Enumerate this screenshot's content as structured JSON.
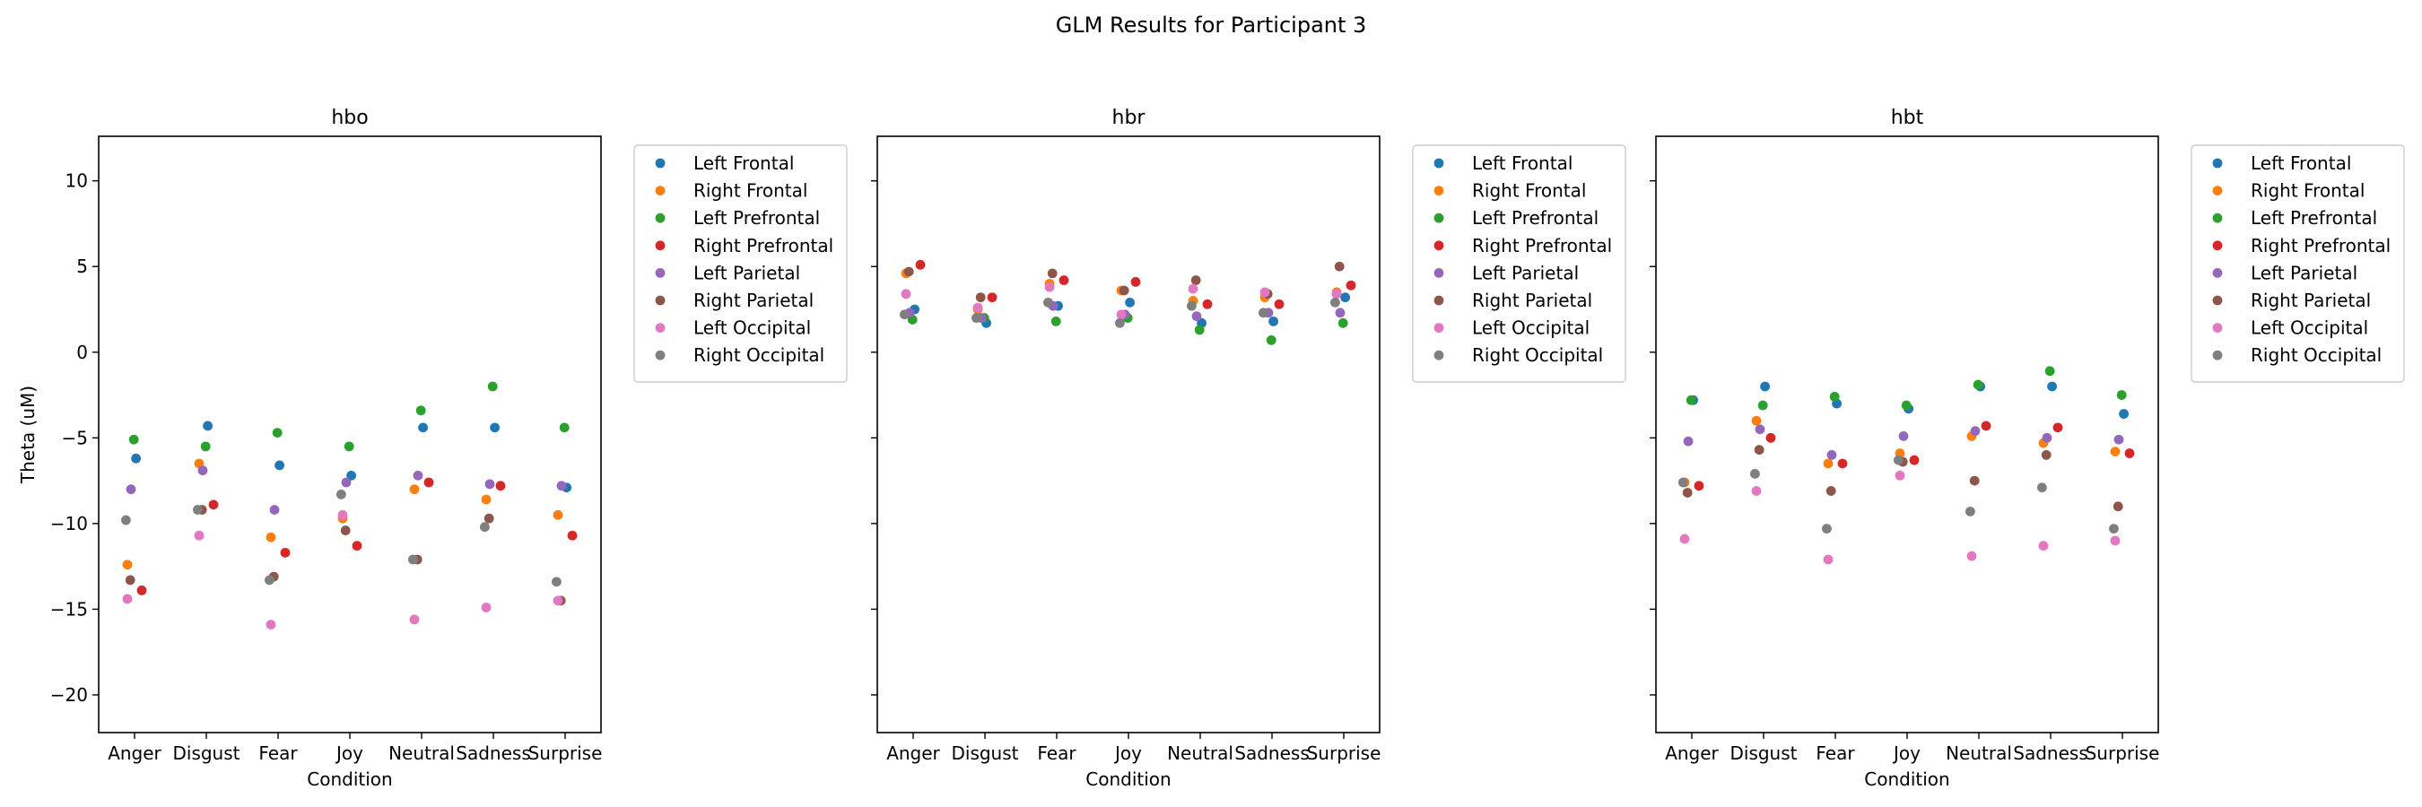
{
  "figure": {
    "suptitle": "GLM Results for Participant 3"
  },
  "legend_entries": [
    {
      "name": "Left Frontal",
      "color": "#1f77b4"
    },
    {
      "name": "Right Frontal",
      "color": "#ff7f0e"
    },
    {
      "name": "Left Prefrontal",
      "color": "#2ca02c"
    },
    {
      "name": "Right Prefrontal",
      "color": "#d62728"
    },
    {
      "name": "Left Parietal",
      "color": "#9467bd"
    },
    {
      "name": "Right Parietal",
      "color": "#8c564b"
    },
    {
      "name": "Left Occipital",
      "color": "#e377c2"
    },
    {
      "name": "Right Occipital",
      "color": "#7f7f7f"
    }
  ],
  "chart_data": [
    {
      "type": "scatter",
      "title": "hbo",
      "xlabel": "Condition",
      "ylabel": "Theta (uM)",
      "categories": [
        "Anger",
        "Disgust",
        "Fear",
        "Joy",
        "Neutral",
        "Sadness",
        "Surprise"
      ],
      "ylim": [
        -22.2,
        12.6
      ],
      "yticks": [
        10,
        5,
        0,
        -5,
        -10,
        -15,
        -20
      ],
      "grid": false,
      "legend_placement": "outside right",
      "series": [
        {
          "name": "Left Frontal",
          "values": [
            -6.2,
            -4.3,
            -6.6,
            -7.2,
            -4.4,
            -4.4,
            -7.9
          ]
        },
        {
          "name": "Right Frontal",
          "values": [
            -12.4,
            -6.5,
            -10.8,
            -9.7,
            -8.0,
            -8.6,
            -9.5
          ]
        },
        {
          "name": "Left Prefrontal",
          "values": [
            -5.1,
            -5.5,
            -4.7,
            -5.5,
            -3.4,
            -2.0,
            -4.4
          ]
        },
        {
          "name": "Right Prefrontal",
          "values": [
            -13.9,
            -8.9,
            -11.7,
            -11.3,
            -7.6,
            -7.8,
            -10.7
          ]
        },
        {
          "name": "Left Parietal",
          "values": [
            -8.0,
            -6.9,
            -9.2,
            -7.6,
            -7.2,
            -7.7,
            -7.8
          ]
        },
        {
          "name": "Right Parietal",
          "values": [
            -13.3,
            -9.2,
            -13.1,
            -10.4,
            -12.1,
            -9.7,
            -14.5
          ]
        },
        {
          "name": "Left Occipital",
          "values": [
            -14.4,
            -10.7,
            -15.9,
            -9.5,
            -15.6,
            -14.9,
            -14.5
          ]
        },
        {
          "name": "Right Occipital",
          "values": [
            -9.8,
            -9.2,
            -13.3,
            -8.3,
            -12.1,
            -10.2,
            -13.4
          ]
        }
      ]
    },
    {
      "type": "scatter",
      "title": "hbr",
      "xlabel": "Condition",
      "ylabel": "",
      "categories": [
        "Anger",
        "Disgust",
        "Fear",
        "Joy",
        "Neutral",
        "Sadness",
        "Surprise"
      ],
      "ylim": [
        -22.2,
        12.6
      ],
      "yticks": [
        10,
        5,
        0,
        -5,
        -10,
        -15,
        -20
      ],
      "grid": false,
      "legend_placement": "outside right",
      "series": [
        {
          "name": "Left Frontal",
          "values": [
            2.5,
            1.7,
            2.7,
            2.9,
            1.7,
            1.8,
            3.2
          ]
        },
        {
          "name": "Right Frontal",
          "values": [
            4.6,
            2.5,
            4.0,
            3.6,
            3.0,
            3.2,
            3.5
          ]
        },
        {
          "name": "Left Prefrontal",
          "values": [
            1.9,
            2.0,
            1.8,
            2.0,
            1.3,
            0.7,
            1.7
          ]
        },
        {
          "name": "Right Prefrontal",
          "values": [
            5.1,
            3.2,
            4.2,
            4.1,
            2.8,
            2.8,
            3.9
          ]
        },
        {
          "name": "Left Parietal",
          "values": [
            2.3,
            2.0,
            2.7,
            2.2,
            2.1,
            2.3,
            2.3
          ]
        },
        {
          "name": "Right Parietal",
          "values": [
            4.7,
            3.2,
            4.6,
            3.6,
            4.2,
            3.4,
            5.0
          ]
        },
        {
          "name": "Left Occipital",
          "values": [
            3.4,
            2.6,
            3.8,
            2.2,
            3.7,
            3.5,
            3.4
          ]
        },
        {
          "name": "Right Occipital",
          "values": [
            2.2,
            2.0,
            2.9,
            1.7,
            2.7,
            2.3,
            2.9
          ]
        }
      ]
    },
    {
      "type": "scatter",
      "title": "hbt",
      "xlabel": "Condition",
      "ylabel": "",
      "categories": [
        "Anger",
        "Disgust",
        "Fear",
        "Joy",
        "Neutral",
        "Sadness",
        "Surprise"
      ],
      "ylim": [
        -22.2,
        12.6
      ],
      "yticks": [
        10,
        5,
        0,
        -5,
        -10,
        -15,
        -20
      ],
      "grid": false,
      "legend_placement": "outside right",
      "series": [
        {
          "name": "Left Frontal",
          "values": [
            -2.8,
            -2.0,
            -3.0,
            -3.3,
            -2.0,
            -2.0,
            -3.6
          ]
        },
        {
          "name": "Right Frontal",
          "values": [
            -7.6,
            -4.0,
            -6.5,
            -5.9,
            -4.9,
            -5.3,
            -5.8
          ]
        },
        {
          "name": "Left Prefrontal",
          "values": [
            -2.8,
            -3.1,
            -2.6,
            -3.1,
            -1.9,
            -1.1,
            -2.5
          ]
        },
        {
          "name": "Right Prefrontal",
          "values": [
            -7.8,
            -5.0,
            -6.5,
            -6.3,
            -4.3,
            -4.4,
            -5.9
          ]
        },
        {
          "name": "Left Parietal",
          "values": [
            -5.2,
            -4.5,
            -6.0,
            -4.9,
            -4.6,
            -5.0,
            -5.1
          ]
        },
        {
          "name": "Right Parietal",
          "values": [
            -8.2,
            -5.7,
            -8.1,
            -6.4,
            -7.5,
            -6.0,
            -9.0
          ]
        },
        {
          "name": "Left Occipital",
          "values": [
            -10.9,
            -8.1,
            -12.1,
            -7.2,
            -11.9,
            -11.3,
            -11.0
          ]
        },
        {
          "name": "Right Occipital",
          "values": [
            -7.6,
            -7.1,
            -10.3,
            -6.3,
            -9.3,
            -7.9,
            -10.3
          ]
        }
      ]
    }
  ]
}
